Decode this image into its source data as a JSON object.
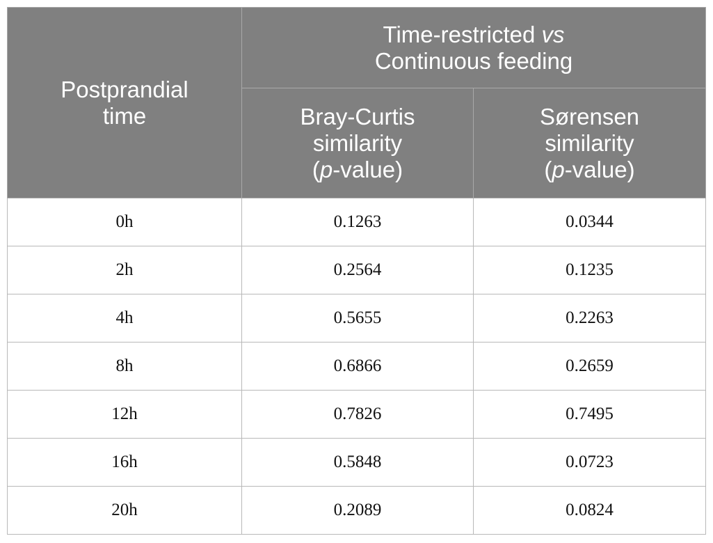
{
  "header": {
    "row_header": [
      "Postprandial",
      "time"
    ],
    "group": {
      "text_before": "Time-restricted ",
      "text_italic": "vs",
      "line2": "Continuous feeding"
    },
    "col1": {
      "line1": "Bray-Curtis",
      "line2": "similarity",
      "open": "(",
      "italic": "p",
      "close": "-value)"
    },
    "col2": {
      "line1": "Sørensen",
      "line2": "similarity",
      "open": "(",
      "italic": "p",
      "close": "-value)"
    }
  },
  "rows": [
    {
      "time": "0h",
      "bray_curtis": "0.1263",
      "sorensen": "0.0344"
    },
    {
      "time": "2h",
      "bray_curtis": "0.2564",
      "sorensen": "0.1235"
    },
    {
      "time": "4h",
      "bray_curtis": "0.5655",
      "sorensen": "0.2263"
    },
    {
      "time": "8h",
      "bray_curtis": "0.6866",
      "sorensen": "0.2659"
    },
    {
      "time": "12h",
      "bray_curtis": "0.7826",
      "sorensen": "0.7495"
    },
    {
      "time": "16h",
      "bray_curtis": "0.5848",
      "sorensen": "0.0723"
    },
    {
      "time": "20h",
      "bray_curtis": "0.2089",
      "sorensen": "0.0824"
    }
  ],
  "colors": {
    "header_bg": "#808080",
    "header_text": "#ffffff",
    "border": "#b8b8b8"
  }
}
